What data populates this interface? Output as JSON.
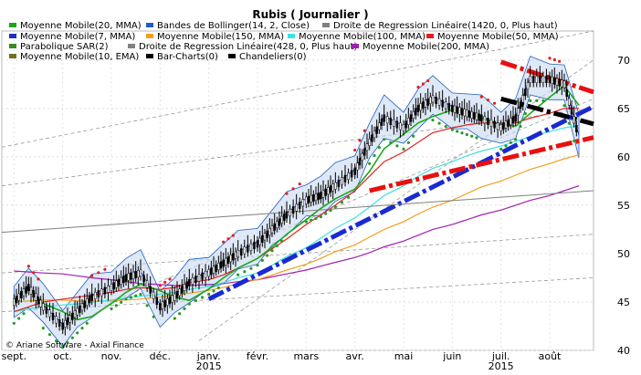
{
  "chart_data": {
    "type": "line",
    "title": "Rubis  ( Journalier )",
    "copyright": "© Ariane Software - Axial Finance",
    "legend": [
      {
        "label": "Moyenne Mobile(20, MMA)",
        "color": "#1aa81a"
      },
      {
        "label": "Bandes de Bollinger(14, 2, Close)",
        "color": "#1f5fbf"
      },
      {
        "label": "Droite de Regression Linéaire(1420, 0, Plus haut)",
        "color": "#808080"
      },
      {
        "label": "Moyenne Mobile(7, MMA)",
        "color": "#1f2fbf"
      },
      {
        "label": "Moyenne Mobile(150, MMA)",
        "color": "#f0a020"
      },
      {
        "label": "Moyenne Mobile(100, MMA)",
        "color": "#40e0e0"
      },
      {
        "label": "Moyenne Mobile(50, MMA)",
        "color": "#e02020"
      },
      {
        "label": "Parabolique SAR(2)",
        "color": "#3a8a2a"
      },
      {
        "label": "Droite de Regression Linéaire(428, 0, Plus haut)",
        "color": "#808080"
      },
      {
        "label": "Moyenne Mobile(200, MMA)",
        "color": "#a020b0"
      },
      {
        "label": "Moyenne Mobile(10, EMA)",
        "color": "#707020"
      },
      {
        "label": "Bar-Charts(0)",
        "color": "#000000"
      },
      {
        "label": "Chandeliers(0)",
        "color": "#000000"
      }
    ],
    "x_ticks": [
      {
        "label": "sept.",
        "t": 0
      },
      {
        "label": "oct.",
        "t": 1
      },
      {
        "label": "nov.",
        "t": 2
      },
      {
        "label": "déc.",
        "t": 3
      },
      {
        "label": "janv.",
        "t": 4,
        "year": "2015"
      },
      {
        "label": "févr.",
        "t": 5
      },
      {
        "label": "mars",
        "t": 6
      },
      {
        "label": "avr.",
        "t": 7
      },
      {
        "label": "mai",
        "t": 8
      },
      {
        "label": "juin",
        "t": 9
      },
      {
        "label": "juil.",
        "t": 10,
        "year": "2015"
      },
      {
        "label": "août",
        "t": 11
      }
    ],
    "y_ticks": [
      40,
      45,
      50,
      55,
      60,
      65,
      70
    ],
    "ylim": [
      40,
      73
    ],
    "xlim": [
      -0.25,
      11.9
    ],
    "price": {
      "t": [
        0,
        0.3,
        0.6,
        1.0,
        1.3,
        1.6,
        2.0,
        2.3,
        2.6,
        3.0,
        3.3,
        3.6,
        4.0,
        4.3,
        4.6,
        5.0,
        5.3,
        5.6,
        6.0,
        6.3,
        6.6,
        7.0,
        7.3,
        7.6,
        8.0,
        8.3,
        8.6,
        9.0,
        9.3,
        9.6,
        10.0,
        10.3,
        10.6,
        11.0,
        11.3,
        11.6
      ],
      "close": [
        45,
        46.5,
        44.5,
        42.5,
        44,
        45.5,
        46.5,
        47.5,
        48,
        44.5,
        45.5,
        47,
        48,
        49,
        50,
        51,
        52.5,
        54,
        55.5,
        56,
        57,
        58.5,
        61.5,
        64,
        63,
        65,
        66,
        65,
        64.5,
        64,
        63,
        64,
        68,
        68,
        67.5,
        62
      ]
    },
    "sar_note": "Parabolique SAR dots",
    "ma50": [
      44,
      44.5,
      45,
      45.3,
      45.5,
      45.7,
      46,
      46.3,
      46.5,
      46.3,
      46.5,
      47,
      47.3,
      47.8,
      48.5,
      49.5,
      50.5,
      51.5,
      53,
      54,
      55,
      56.5,
      58,
      59.5,
      60.5,
      61.5,
      62.5,
      63,
      63.3,
      63.5,
      63.5,
      63.5,
      64,
      64.5,
      65,
      65
    ],
    "ma100": [
      44,
      44.3,
      44.5,
      44.7,
      44.8,
      45,
      45.2,
      45.4,
      45.6,
      45.8,
      46,
      46.3,
      46.6,
      47,
      47.5,
      48,
      48.8,
      49.7,
      50.6,
      51.6,
      52.6,
      53.7,
      54.8,
      56,
      57,
      58,
      58.8,
      59.5,
      60.1,
      60.6,
      61.1,
      61.6,
      62.1,
      62.6,
      63,
      63.2
    ],
    "ma150": [
      45,
      45.1,
      45.2,
      45.2,
      45.1,
      45.1,
      45.1,
      45.2,
      45.3,
      45.5,
      45.7,
      45.9,
      46.2,
      46.5,
      46.9,
      47.3,
      47.8,
      48.3,
      48.9,
      49.5,
      50.2,
      50.9,
      51.7,
      52.5,
      53.3,
      54.1,
      54.8,
      55.5,
      56.2,
      56.9,
      57.5,
      58.1,
      58.7,
      59.3,
      59.8,
      60.2
    ],
    "ma200": [
      48.2,
      48.1,
      48,
      47.9,
      47.7,
      47.5,
      47.3,
      47.1,
      46.9,
      46.8,
      46.7,
      46.7,
      46.8,
      46.9,
      47.1,
      47.3,
      47.6,
      47.9,
      48.3,
      48.7,
      49.1,
      49.6,
      50.1,
      50.7,
      51.3,
      51.9,
      52.5,
      53,
      53.5,
      54,
      54.5,
      55,
      55.5,
      56,
      56.5,
      57
    ],
    "trendlines": [
      {
        "name": "support-bleu",
        "color": "#1a2ad0",
        "from": [
          4.0,
          45.3
        ],
        "to": [
          11.9,
          65.2
        ],
        "style": "dashdot"
      },
      {
        "name": "support-rouge",
        "color": "#e81010",
        "from": [
          7.3,
          56.5
        ],
        "to": [
          11.9,
          62.0
        ],
        "style": "dashdot"
      },
      {
        "name": "resistance-rouge",
        "color": "#e81010",
        "from": [
          10.0,
          69.8
        ],
        "to": [
          11.9,
          66.7
        ],
        "style": "dashdot"
      },
      {
        "name": "canal-noir",
        "color": "#000000",
        "from": [
          10.0,
          66.0
        ],
        "to": [
          11.9,
          63.4
        ],
        "style": "dashdot"
      },
      {
        "name": "regression-1420",
        "color": "#808080",
        "from": [
          -0.25,
          52.2
        ],
        "to": [
          11.9,
          56.5
        ],
        "style": "solid"
      }
    ]
  }
}
